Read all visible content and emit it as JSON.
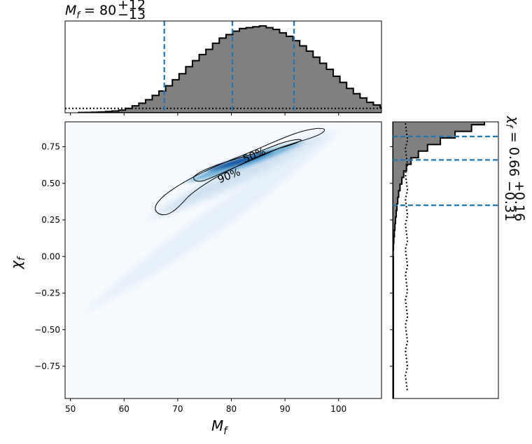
{
  "chart_data": {
    "type": "corner",
    "panels": [
      {
        "id": "top-marginal",
        "type": "histogram",
        "parameter": "M_f",
        "title_prefix": "M",
        "title_subscript": "f",
        "title_value": " = 80",
        "title_plus": "+12",
        "title_minus": "−13",
        "xlim": [
          49,
          108
        ],
        "bins_start": 51.5,
        "bin_width": 1.25,
        "bin_density": [
          0.003,
          0.004,
          0.006,
          0.009,
          0.014,
          0.02,
          0.03,
          0.05,
          0.08,
          0.11,
          0.15,
          0.2,
          0.25,
          0.31,
          0.38,
          0.45,
          0.53,
          0.6,
          0.67,
          0.73,
          0.8,
          0.86,
          0.9,
          0.94,
          0.97,
          0.98,
          0.99,
          1.0,
          0.98,
          0.96,
          0.92,
          0.88,
          0.83,
          0.77,
          0.71,
          0.64,
          0.57,
          0.5,
          0.42,
          0.35,
          0.28,
          0.22,
          0.17,
          0.12,
          0.09,
          0.06,
          0.04,
          0.025,
          0.014,
          0.007
        ],
        "prior_level": 0.05,
        "quantile_lines": [
          67.5,
          80.2,
          91.7
        ],
        "line_color": "#1f77b4",
        "fill_color": "#808080"
      },
      {
        "id": "right-marginal",
        "type": "histogram",
        "parameter": "chi_f",
        "orientation": "horizontal",
        "title_prefix": "χ",
        "title_subscript": "f",
        "title_value": " = 0.66",
        "title_plus": "+0.16",
        "title_minus": "−0.31",
        "ylim": [
          -0.97,
          0.92
        ],
        "bins_start": 0.0,
        "bin_width": 0.045,
        "bin_density": [
          0.005,
          0.008,
          0.012,
          0.018,
          0.024,
          0.03,
          0.038,
          0.046,
          0.055,
          0.065,
          0.08,
          0.1,
          0.12,
          0.15,
          0.2,
          0.28,
          0.38,
          0.52,
          0.68,
          0.86,
          1.0,
          0.95,
          0.78,
          0.5,
          0.3,
          0.15,
          0.05
        ],
        "prior_level": 0.15,
        "quantile_lines": [
          0.35,
          0.66,
          0.82
        ],
        "line_color": "#1f77b4",
        "fill_color": "#808080"
      },
      {
        "id": "joint",
        "type": "density-contour",
        "x_parameter": "M_f",
        "y_parameter": "chi_f",
        "xlabel_main": "M",
        "xlabel_sub": "f",
        "ylabel_main": "χ",
        "ylabel_sub": "f",
        "xlim": [
          49,
          108
        ],
        "ylim": [
          -0.97,
          0.92
        ],
        "xticks": [
          50,
          60,
          70,
          80,
          90,
          100
        ],
        "yticks": [
          0.75,
          0.5,
          0.25,
          0.0,
          -0.25,
          -0.5,
          -0.75
        ],
        "ytick_labels": [
          "0.75",
          "0.50",
          "0.25",
          "0.00",
          "−0.25",
          "−0.50",
          "−0.75"
        ],
        "colormap": "Blues",
        "density_ridge": {
          "start": [
            52,
            -0.4
          ],
          "end": [
            101,
            0.88
          ],
          "peak": [
            80.5,
            0.66
          ]
        },
        "contours": [
          {
            "level": "50%",
            "label": "50%"
          },
          {
            "level": "90%",
            "label": "90%"
          }
        ]
      }
    ]
  }
}
